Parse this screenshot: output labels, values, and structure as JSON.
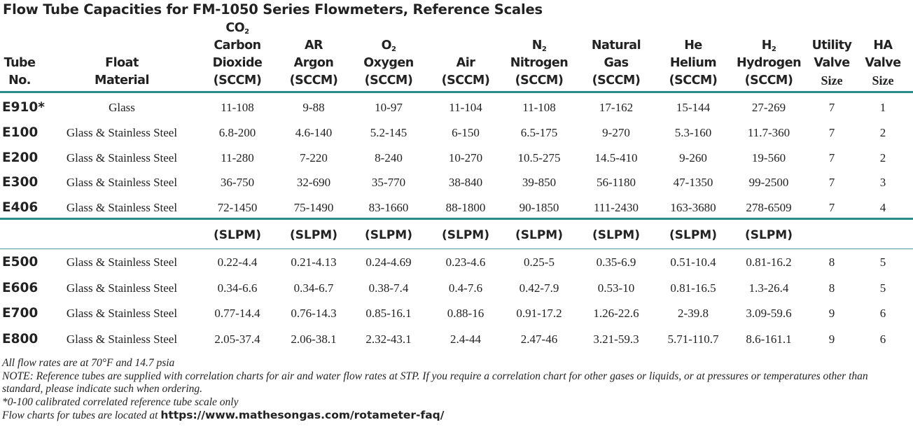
{
  "title": "Flow Tube Capacities for FM-1050 Series Flowmeters, Reference Scales",
  "headers": [
    {
      "lines": [
        "Tube",
        "No."
      ]
    },
    {
      "lines": [
        "Float",
        "Material"
      ]
    },
    {
      "formula_main": "CO",
      "formula_sub": "2",
      "lines": [
        "Carbon",
        "Dioxide",
        "(SCCM)"
      ]
    },
    {
      "lines": [
        "AR",
        "Argon",
        "(SCCM)"
      ]
    },
    {
      "formula_main": "O",
      "formula_sub": "2",
      "lines": [
        "Oxygen",
        "(SCCM)"
      ]
    },
    {
      "lines": [
        "Air",
        "(SCCM)"
      ]
    },
    {
      "formula_main": "N",
      "formula_sub": "2",
      "lines": [
        "Nitrogen",
        "(SCCM)"
      ]
    },
    {
      "lines": [
        "Natural",
        "Gas",
        "(SCCM)"
      ]
    },
    {
      "lines": [
        "He",
        "Helium",
        "(SCCM)"
      ]
    },
    {
      "formula_main": "H",
      "formula_sub": "2",
      "lines": [
        "Hydrogen",
        "(SCCM)"
      ]
    },
    {
      "lines": [
        "Utility",
        "Valve"
      ],
      "size_label": "Size"
    },
    {
      "lines": [
        "HA",
        "Valve"
      ],
      "size_label": "Size"
    }
  ],
  "sccm_rows": [
    {
      "tube": "E910*",
      "cells": [
        "Glass",
        "11-108",
        "9-88",
        "10-97",
        "11-104",
        "11-108",
        "17-162",
        "15-144",
        "27-269",
        "7",
        "1"
      ]
    },
    {
      "tube": "E100",
      "cells": [
        "Glass & Stainless Steel",
        "6.8-200",
        "4.6-140",
        "5.2-145",
        "6-150",
        "6.5-175",
        "9-270",
        "5.3-160",
        "11.7-360",
        "7",
        "2"
      ]
    },
    {
      "tube": "E200",
      "cells": [
        "Glass & Stainless Steel",
        "11-280",
        "7-220",
        "8-240",
        "10-270",
        "10.5-275",
        "14.5-410",
        "9-260",
        "19-560",
        "7",
        "2"
      ]
    },
    {
      "tube": "E300",
      "cells": [
        "Glass & Stainless Steel",
        "36-750",
        "32-690",
        "35-770",
        "38-840",
        "39-850",
        "56-1180",
        "47-1350",
        "99-2500",
        "7",
        "3"
      ]
    },
    {
      "tube": "E406",
      "cells": [
        "Glass & Stainless Steel",
        "72-1450",
        "75-1490",
        "83-1660",
        "88-1800",
        "90-1850",
        "111-2430",
        "163-3680",
        "278-6509",
        "7",
        "4"
      ]
    }
  ],
  "slpm_units": [
    "(SLPM)",
    "(SLPM)",
    "(SLPM)",
    "(SLPM)",
    "(SLPM)",
    "(SLPM)",
    "(SLPM)",
    "(SLPM)"
  ],
  "slpm_rows": [
    {
      "tube": "E500",
      "cells": [
        "Glass & Stainless Steel",
        "0.22-4.4",
        "0.21-4.13",
        "0.24-4.69",
        "0.23-4.6",
        "0.25-5",
        "0.35-6.9",
        "0.51-10.4",
        "0.81-16.2",
        "8",
        "5"
      ]
    },
    {
      "tube": "E606",
      "cells": [
        "Glass & Stainless Steel",
        "0.34-6.6",
        "0.34-6.7",
        "0.38-7.4",
        "0.4-7.6",
        "0.42-7.9",
        "0.53-10",
        "0.81-16.5",
        "1.3-26.4",
        "8",
        "5"
      ]
    },
    {
      "tube": "E700",
      "cells": [
        "Glass & Stainless Steel",
        "0.77-14.4",
        "0.76-14.3",
        "0.85-16.1",
        "0.88-16",
        "0.91-17.2",
        "1.26-22.6",
        "2-39.8",
        "3.09-59.6",
        "9",
        "6"
      ]
    },
    {
      "tube": "E800",
      "cells": [
        "Glass & Stainless Steel",
        "2.05-37.4",
        "2.06-38.1",
        "2.32-43.1",
        "2.4-44",
        "2.47-46",
        "3.21-59.3",
        "5.71-110.7",
        "8.6-161.1",
        "9",
        "6"
      ]
    }
  ],
  "notes": {
    "line1": "All flow rates are at 70°F and 14.7 psia",
    "line2": "NOTE: Reference tubes are supplied with correlation charts for air and water flow rates at STP. If you require a correlation chart for other gases or liquids, or at pressures or temperatures other than standard, please indicate such when ordering.",
    "line3": "*0-100 calibrated correlated reference tube scale only",
    "line4_prefix": "Flow charts for tubes are located at ",
    "line4_url": "https://www.mathesongas.com/rotameter-faq/"
  },
  "colors": {
    "rule": "#2b8a8a",
    "text": "#222222"
  }
}
